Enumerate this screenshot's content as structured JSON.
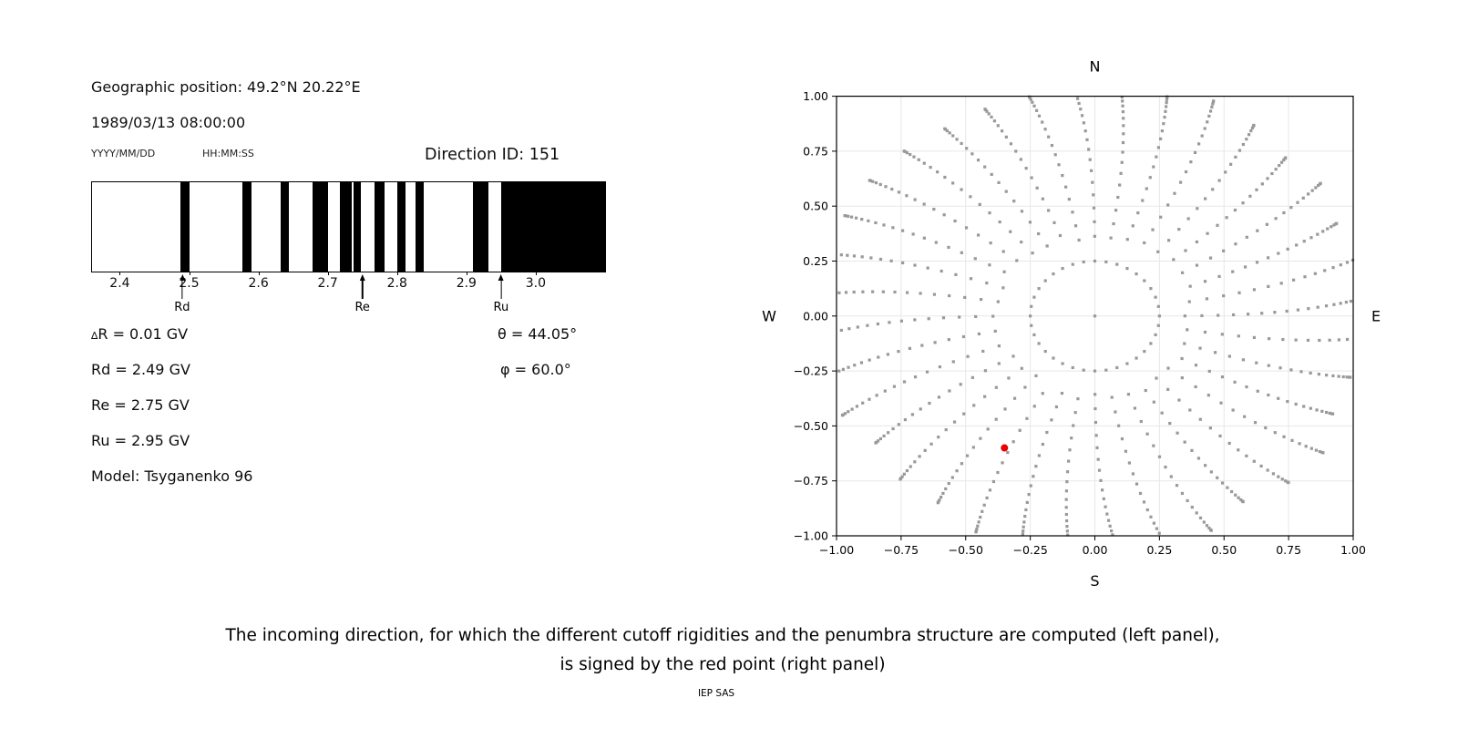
{
  "info_panel": {
    "geo_position": "Geographic position: 49.2°N 20.22°E",
    "datetime": "1989/03/13 08:00:00",
    "date_format": "YYYY/MM/DD",
    "time_format": "HH:MM:SS",
    "direction_id": "Direction ID: 151",
    "delta_symbol": "∆",
    "delta_rest": "R = 0.01 GV",
    "rd_line": "Rd = 2.49 GV",
    "re_line": "Re = 2.75 GV",
    "ru_line": "Ru = 2.95 GV",
    "model_line": "Model: Tsyganenko 96",
    "theta_line": "θ = 44.05°",
    "phi_line": "φ = 60.0°"
  },
  "caption": {
    "line1": "The incoming direction, for which the different cutoff rigidities and the penumbra structure are computed (left panel),",
    "line2": "is signed by the red point (right panel)",
    "credit": "IEP SAS"
  },
  "chart_data": [
    {
      "id": "penumbra-spectrum",
      "type": "bar",
      "title": "",
      "description": "Penumbra structure: black bands are forbidden rigidity intervals in GV",
      "xlim": [
        2.36,
        3.1
      ],
      "xticks": [
        2.4,
        2.5,
        2.6,
        2.7,
        2.8,
        2.9,
        3.0
      ],
      "forbidden_bands_gv": [
        [
          2.488,
          2.5
        ],
        [
          2.577,
          2.59
        ],
        [
          2.632,
          2.644
        ],
        [
          2.678,
          2.7
        ],
        [
          2.718,
          2.734
        ],
        [
          2.737,
          2.748
        ],
        [
          2.767,
          2.782
        ],
        [
          2.8,
          2.812
        ],
        [
          2.827,
          2.838
        ],
        [
          2.91,
          2.932
        ],
        [
          2.95,
          3.1
        ]
      ],
      "markers": [
        {
          "label": "Rd",
          "value_gv": 2.49
        },
        {
          "label": "Re",
          "value_gv": 2.75
        },
        {
          "label": "Ru",
          "value_gv": 2.95
        }
      ]
    },
    {
      "id": "direction-map",
      "type": "scatter",
      "title": "",
      "compass": {
        "top": "N",
        "bottom": "S",
        "left": "W",
        "right": "E"
      },
      "xlim": [
        -1,
        1
      ],
      "ylim": [
        -1,
        1
      ],
      "xticks": [
        -1,
        -0.75,
        -0.5,
        -0.25,
        0,
        0.25,
        0.5,
        0.75,
        1
      ],
      "yticks": [
        -1,
        -0.75,
        -0.5,
        -0.25,
        0,
        0.25,
        0.5,
        0.75,
        1
      ],
      "grid": true,
      "grid_color": "#e7e7e7",
      "marker_color": "#999999",
      "red_point": {
        "x": -0.35,
        "y": -0.6,
        "color": "#e90000",
        "label": "incoming direction"
      },
      "gray_dot_pattern": {
        "description": "radial spokes of gray direction dots (estimated generator parameters)",
        "spoke_step_deg": 10,
        "num_spokes": 36,
        "inner_ring_radius": 0.25,
        "ring_dot_count": 36,
        "center_dot": true,
        "spoke_radius_start": 0.31,
        "spoke_radius_end": 1.05,
        "dots_per_spoke": 19,
        "tip_densify_exponent": 1.8,
        "curvature_deg": 4.5
      }
    }
  ]
}
